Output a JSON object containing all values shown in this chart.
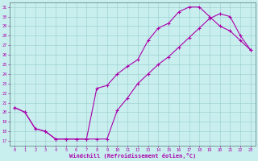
{
  "bg_color": "#c8eeee",
  "line_color": "#aa00aa",
  "grid_color": "#99cccc",
  "xlim_min": -0.5,
  "xlim_max": 23.5,
  "ylim_min": 16.5,
  "ylim_max": 31.5,
  "xticks": [
    0,
    1,
    2,
    3,
    4,
    5,
    6,
    7,
    8,
    9,
    10,
    11,
    12,
    13,
    14,
    15,
    16,
    17,
    18,
    19,
    20,
    21,
    22,
    23
  ],
  "yticks": [
    17,
    18,
    19,
    20,
    21,
    22,
    23,
    24,
    25,
    26,
    27,
    28,
    29,
    30,
    31
  ],
  "xlabel": "Windchill (Refroidissement éolien,°C)",
  "line1_x": [
    0,
    1,
    2,
    3,
    4,
    5,
    6,
    7,
    8,
    9,
    10,
    11,
    12,
    13,
    14,
    15,
    16,
    17,
    18,
    19,
    20,
    21,
    22,
    23
  ],
  "line1_y": [
    20.5,
    20.0,
    18.3,
    18.0,
    17.2,
    17.2,
    17.2,
    17.2,
    22.5,
    22.8,
    24.0,
    24.8,
    25.5,
    27.5,
    28.8,
    29.3,
    30.5,
    31.0,
    31.0,
    30.0,
    29.0,
    28.5,
    27.5,
    26.5
  ],
  "line2_x": [
    0,
    1,
    2,
    3,
    4,
    5,
    6,
    7,
    8,
    9,
    10,
    11,
    12,
    13,
    14,
    15,
    16,
    17,
    18,
    19,
    20,
    21,
    22,
    23
  ],
  "line2_y": [
    20.5,
    20.0,
    18.3,
    18.0,
    17.2,
    17.2,
    17.2,
    17.2,
    17.2,
    17.2,
    20.2,
    21.5,
    23.0,
    24.0,
    25.0,
    25.8,
    26.8,
    27.8,
    28.8,
    29.8,
    30.3,
    30.0,
    28.0,
    26.5
  ]
}
